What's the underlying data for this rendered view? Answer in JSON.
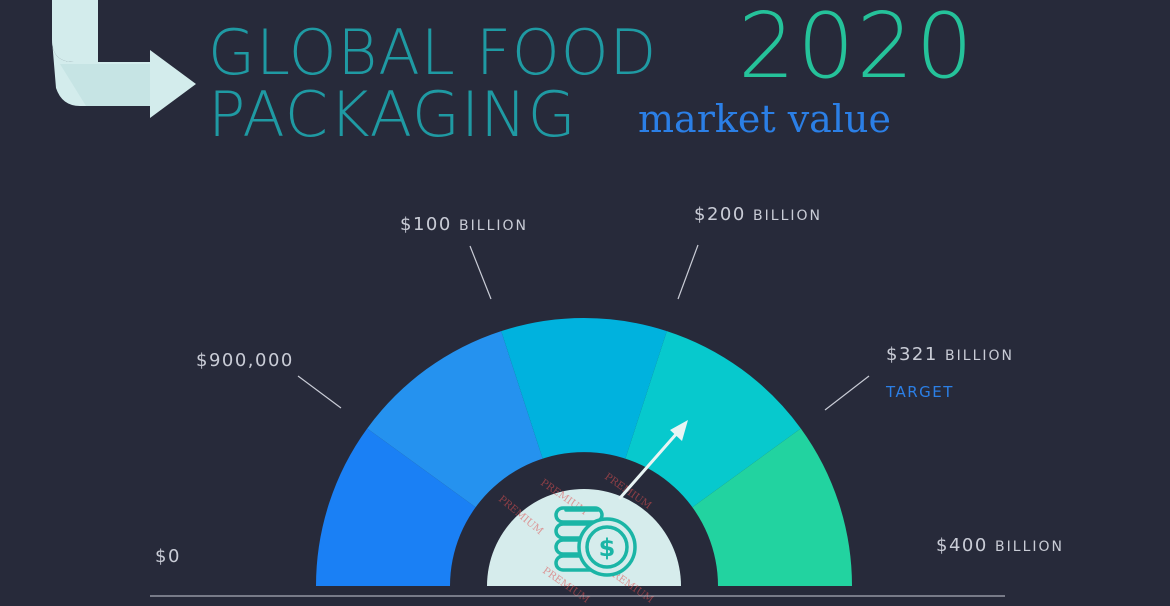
{
  "title": {
    "line1": "GLOBAL FOOD",
    "year": "2020",
    "line2": "PACKAGING",
    "subtitle": "market value"
  },
  "gauge": {
    "labels": [
      {
        "amount": "$0",
        "unit": ""
      },
      {
        "amount": "$900,000",
        "unit": ""
      },
      {
        "amount": "$100",
        "unit": "BILLION"
      },
      {
        "amount": "$200",
        "unit": "BILLION"
      },
      {
        "amount": "$321",
        "unit": "BILLION"
      },
      {
        "amount": "$400",
        "unit": "BILLION"
      }
    ],
    "target_label": "TARGET",
    "segment_colors": [
      "#1a80f5",
      "#2592ef",
      "#00b2de",
      "#07c9cd",
      "#22d3a0"
    ],
    "center_icon": "dollar-coin-stack-icon",
    "needle_icon": "arrow-needle-icon",
    "watermark": "PREMIUM"
  },
  "colors": {
    "background": "#272a3a",
    "title": "#1f9aa3",
    "year": "#25c29a",
    "subtitle": "#2b7fe6",
    "label": "#c9ccd6",
    "hub": "#d6ecec"
  }
}
